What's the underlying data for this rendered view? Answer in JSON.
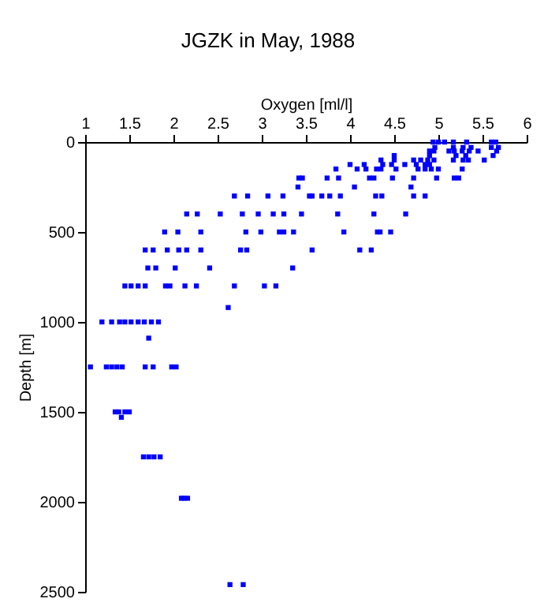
{
  "chart_data": {
    "type": "scatter",
    "title": "JGZK in May, 1988",
    "xlabel": "Oxygen [ml/l]",
    "ylabel": "Depth [m]",
    "xlim": [
      1,
      6
    ],
    "xticks": [
      1,
      1.5,
      2,
      2.5,
      3,
      3.5,
      4,
      4.5,
      5,
      5.5,
      6
    ],
    "ylim": [
      2500,
      0
    ],
    "yticks": [
      0,
      500,
      1000,
      1500,
      2000,
      2500
    ],
    "grid": false,
    "marker": "square",
    "series": [
      {
        "color": "#0000ff",
        "x": [
          2.64,
          2.79,
          2.09,
          2.12,
          2.16,
          1.66,
          1.72,
          1.78,
          1.85,
          1.34,
          1.38,
          1.45,
          1.5,
          1.41,
          1.06,
          1.24,
          1.3,
          1.36,
          1.42,
          1.68,
          1.77,
          1.98,
          2.03,
          1.72,
          1.19,
          1.3,
          1.39,
          1.45,
          1.52,
          1.6,
          1.67,
          1.75,
          1.83,
          2.62,
          1.45,
          1.52,
          1.6,
          1.68,
          1.91,
          1.96,
          2.13,
          2.26,
          2.69,
          3.03,
          3.16,
          1.71,
          1.8,
          2.02,
          2.41,
          3.35,
          1.68,
          1.77,
          1.93,
          2.06,
          2.15,
          2.31,
          2.76,
          2.83,
          3.57,
          4.11,
          4.24,
          1.9,
          2.05,
          2.31,
          2.82,
          2.99,
          3.2,
          3.25,
          3.36,
          3.93,
          4.31,
          4.34,
          4.46,
          2.15,
          2.27,
          2.53,
          2.78,
          2.96,
          3.13,
          3.25,
          3.45,
          3.86,
          4.27,
          4.63,
          2.69,
          2.84,
          3.07,
          3.24,
          3.54,
          3.57,
          3.68,
          3.77,
          3.89,
          4.29,
          4.36,
          4.72,
          4.85,
          3.41,
          4.05,
          4.69,
          3.42,
          3.46,
          3.74,
          3.87,
          4.22,
          4.27,
          4.48,
          4.72,
          4.98,
          5.18,
          5.23,
          3.84,
          4.08,
          4.18,
          4.3,
          4.35,
          4.52,
          4.77,
          4.85,
          4.92,
          5.0,
          5.27,
          4.0,
          4.16,
          4.37,
          4.47,
          4.62,
          4.75,
          4.85,
          4.9,
          4.35,
          4.5,
          4.72,
          4.8,
          4.88,
          4.95,
          5.17,
          5.28,
          5.34,
          5.52,
          4.5,
          4.9,
          5.2,
          5.31,
          5.62,
          4.9,
          4.95,
          5.12,
          5.18,
          5.27,
          5.35,
          5.45,
          5.66,
          4.96,
          5.17,
          5.28,
          5.37,
          5.6,
          5.68,
          4.94,
          5.0,
          5.07,
          5.17,
          5.32,
          5.6,
          5.65
        ],
        "values": [
          2460,
          2460,
          1980,
          1980,
          1980,
          1750,
          1750,
          1750,
          1750,
          1500,
          1500,
          1500,
          1500,
          1530,
          1250,
          1250,
          1250,
          1250,
          1250,
          1250,
          1250,
          1250,
          1250,
          1090,
          1000,
          1000,
          1000,
          1000,
          1000,
          1000,
          1000,
          1000,
          1000,
          920,
          800,
          800,
          800,
          800,
          800,
          800,
          800,
          800,
          800,
          800,
          800,
          700,
          700,
          700,
          700,
          700,
          600,
          600,
          600,
          600,
          600,
          600,
          600,
          600,
          600,
          600,
          600,
          500,
          500,
          500,
          500,
          500,
          500,
          500,
          500,
          500,
          500,
          500,
          500,
          400,
          400,
          400,
          400,
          400,
          400,
          400,
          400,
          400,
          400,
          400,
          300,
          300,
          300,
          300,
          300,
          300,
          300,
          300,
          300,
          300,
          300,
          300,
          300,
          250,
          250,
          250,
          200,
          200,
          200,
          200,
          200,
          200,
          200,
          200,
          200,
          200,
          200,
          150,
          150,
          150,
          150,
          150,
          150,
          150,
          150,
          150,
          150,
          150,
          125,
          125,
          125,
          125,
          125,
          125,
          125,
          125,
          100,
          100,
          100,
          100,
          100,
          100,
          100,
          100,
          100,
          100,
          75,
          75,
          75,
          75,
          75,
          50,
          50,
          50,
          50,
          50,
          50,
          50,
          50,
          30,
          30,
          30,
          30,
          30,
          30,
          0,
          0,
          0,
          0,
          0,
          0,
          0
        ]
      }
    ]
  }
}
